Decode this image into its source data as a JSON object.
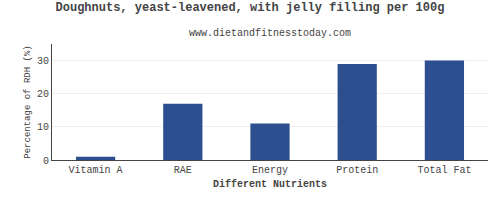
{
  "chart_data": {
    "type": "bar",
    "title": "Doughnuts, yeast-leavened, with jelly filling per 100g",
    "subtitle": "www.dietandfitnesstoday.com",
    "xlabel": "Different Nutrients",
    "ylabel": "Percentage of RDH (%)",
    "categories": [
      "Vitamin A",
      "RAE",
      "Energy",
      "Protein",
      "Total Fat"
    ],
    "values": [
      1,
      17,
      11,
      29,
      30
    ],
    "color": "#2e4f8f",
    "ylim": [
      0,
      35
    ],
    "yticks": [
      0,
      10,
      20,
      30
    ],
    "grid": true
  }
}
